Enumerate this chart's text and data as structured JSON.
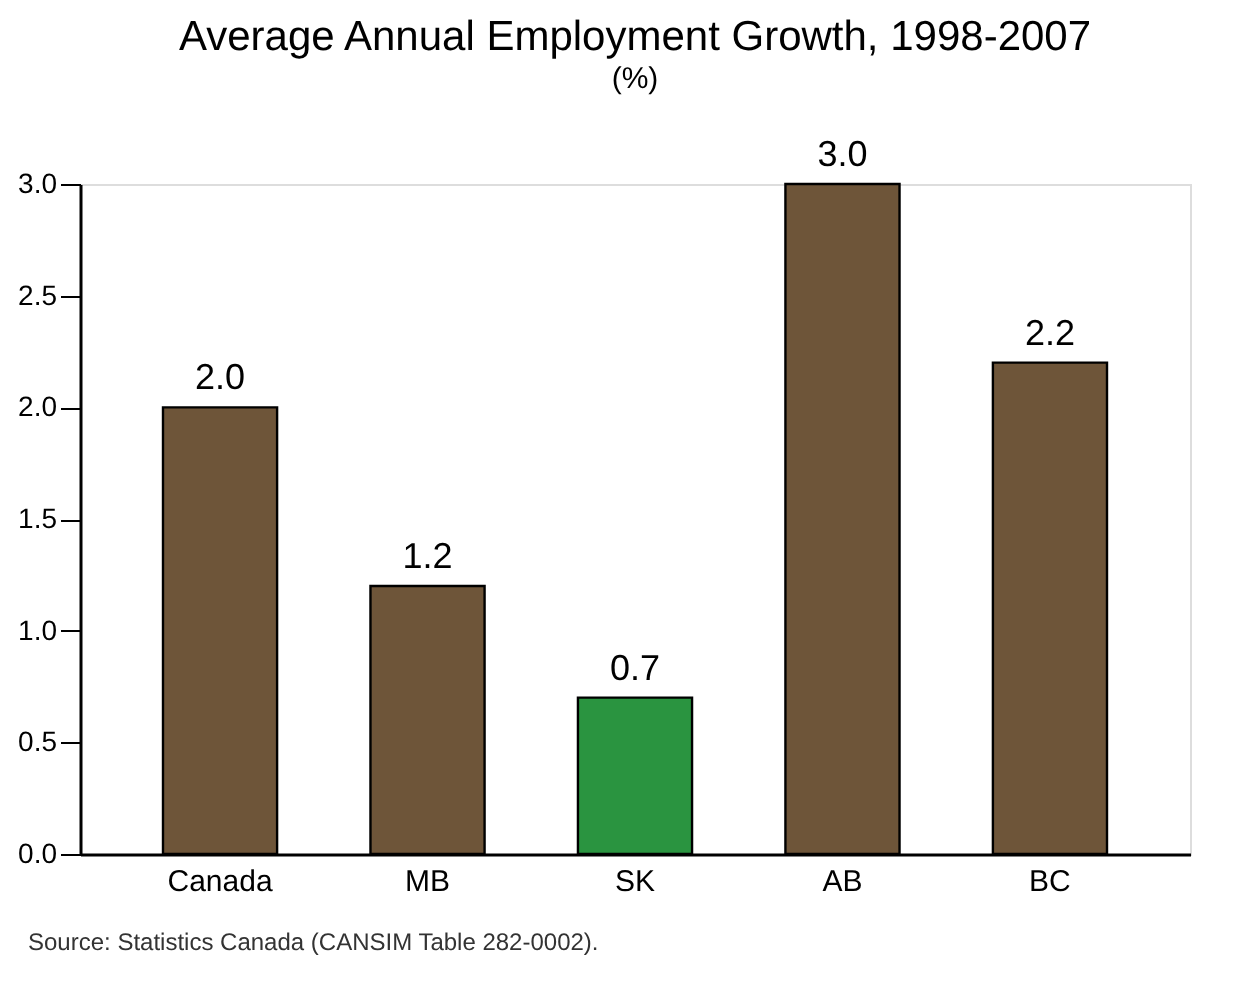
{
  "chart_data": {
    "type": "bar",
    "title": "Average Annual Employment Growth, 1998-2007",
    "subtitle": "(%)",
    "categories": [
      "Canada",
      "MB",
      "SK",
      "AB",
      "BC"
    ],
    "values": [
      2.0,
      1.2,
      0.7,
      3.0,
      2.2
    ],
    "colors": [
      "#6e5539",
      "#6e5539",
      "#2a9440",
      "#6e5539",
      "#6e5539"
    ],
    "ylim": [
      0,
      3.0
    ],
    "yticks": [
      {
        "value": 0,
        "label": "0.0"
      },
      {
        "value": 0.5,
        "label": "0.5"
      },
      {
        "value": 1,
        "label": "1.0"
      },
      {
        "value": 1.5,
        "label": "1.5"
      },
      {
        "value": 2,
        "label": "2.0"
      },
      {
        "value": 2.5,
        "label": "2.5"
      },
      {
        "value": 3,
        "label": "3.0"
      }
    ],
    "value_labels": [
      "2.0",
      "1.2",
      "0.7",
      "3.0",
      "2.2"
    ],
    "grid": false,
    "legend": false,
    "annotations": [
      "Source:  Statistics Canada (CANSIM Table 282-0002)."
    ]
  }
}
